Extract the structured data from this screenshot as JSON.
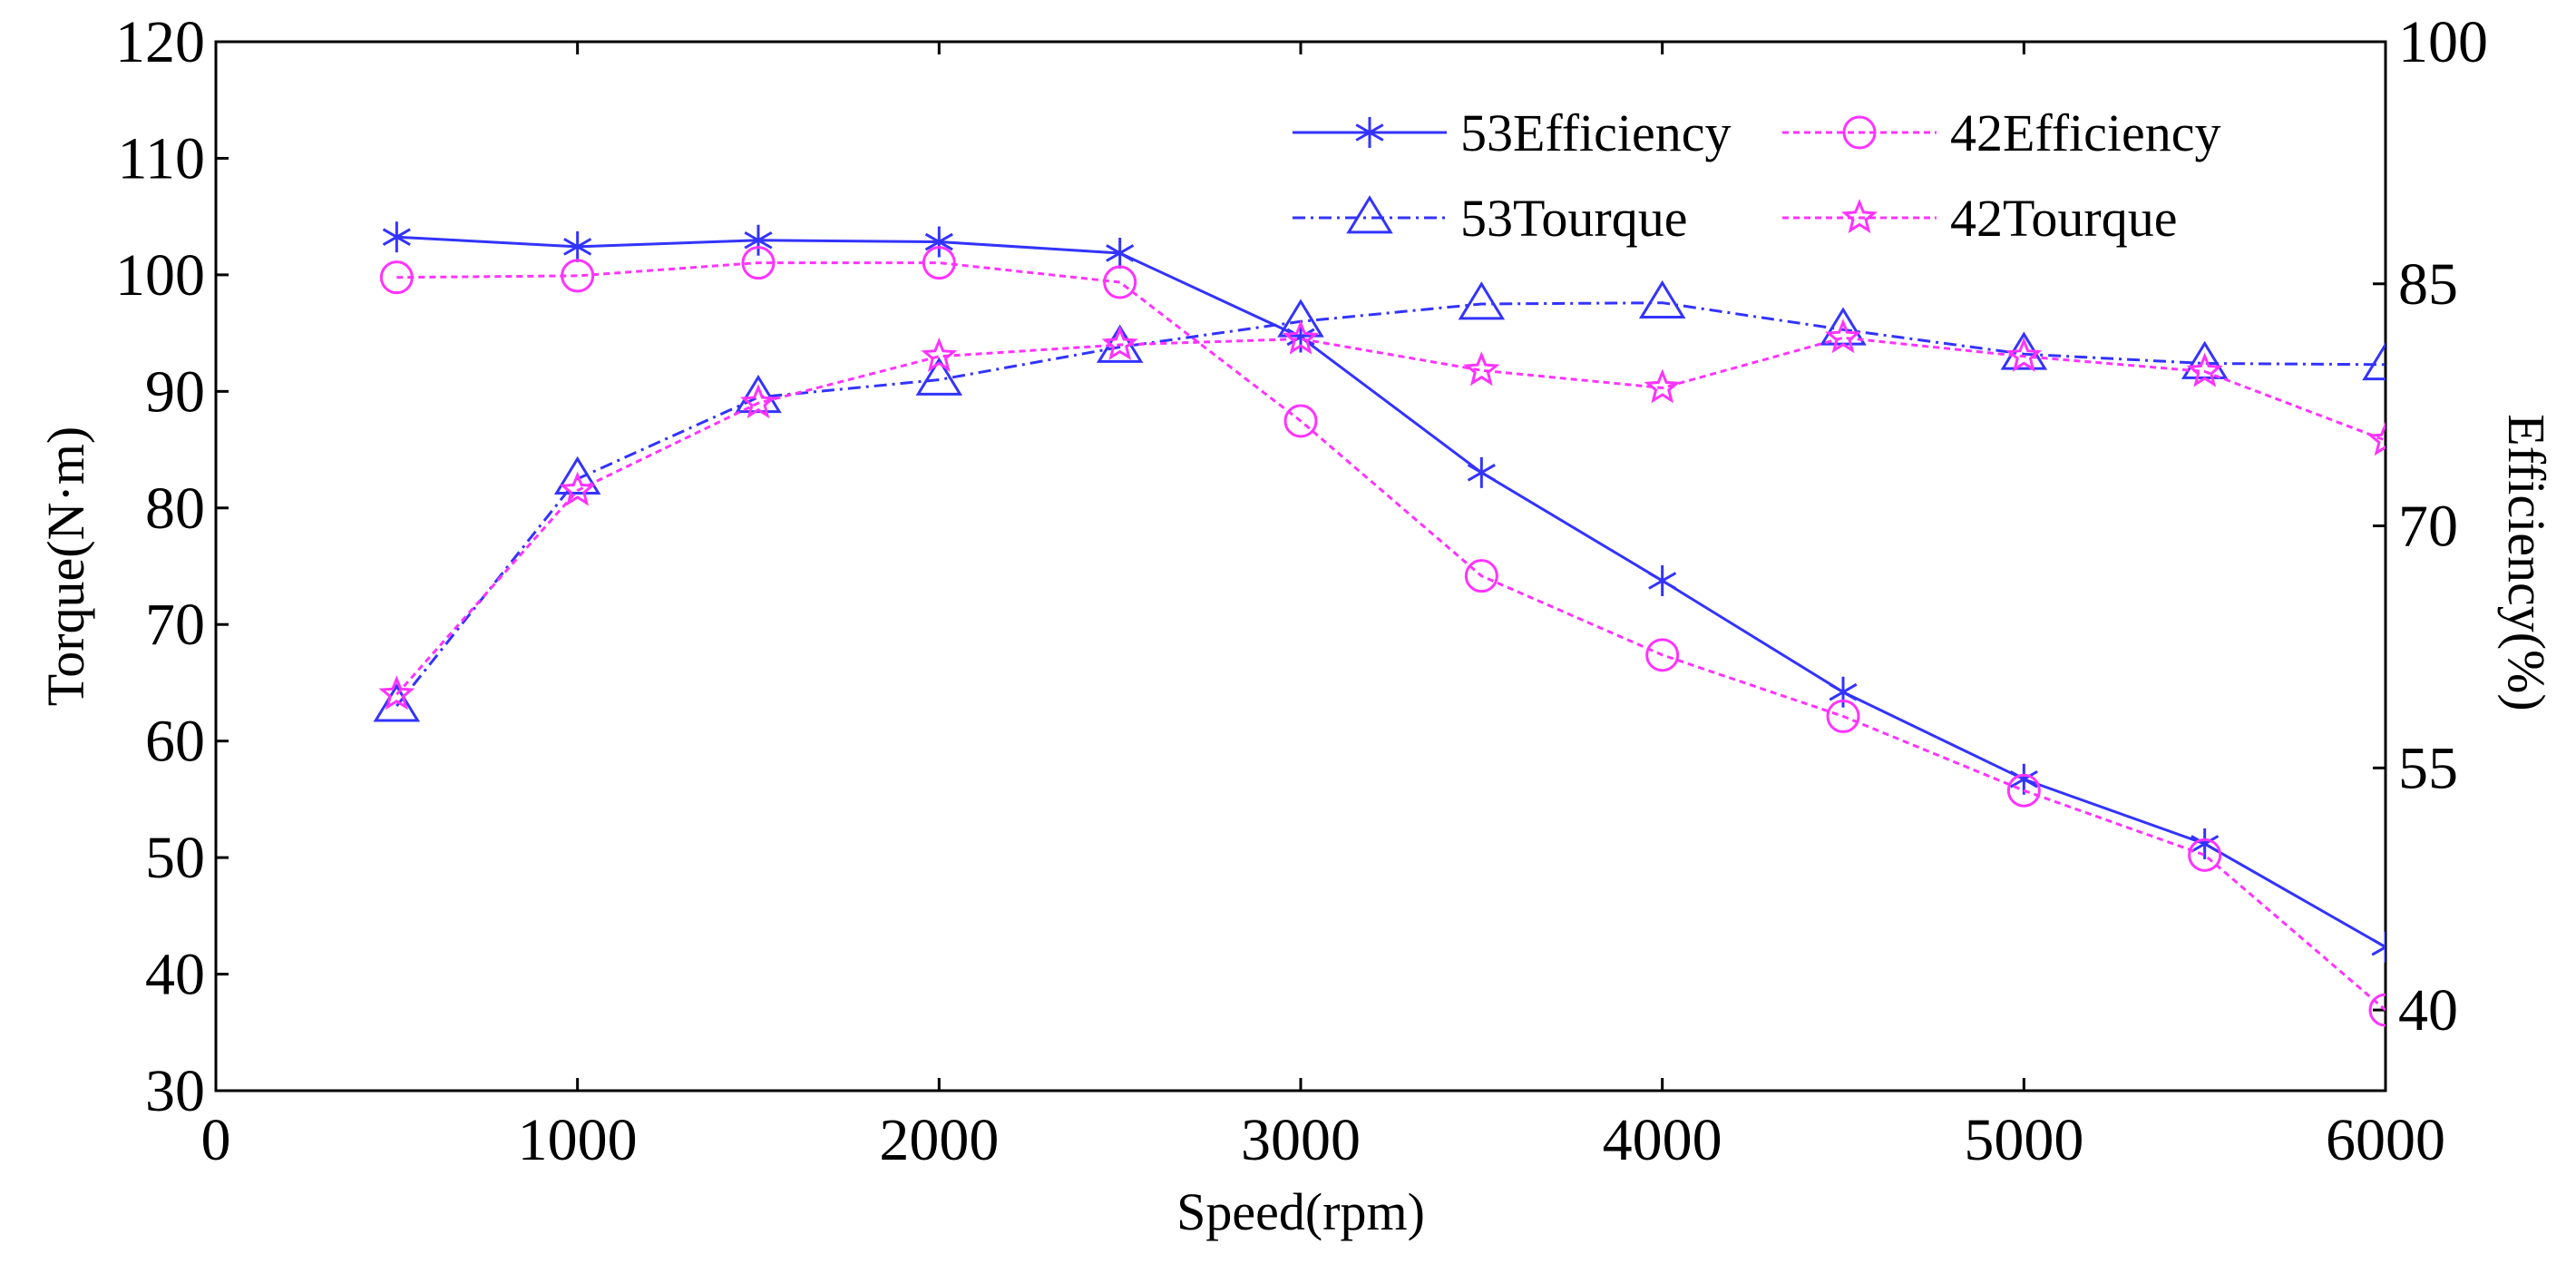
{
  "chart_data": {
    "type": "line",
    "title": "",
    "xlabel": "Speed(rpm)",
    "ylabel_left": "Torque(N·m)",
    "ylabel_right": "Efficiency(%)",
    "xlim": [
      0,
      6000
    ],
    "ylim_left": [
      30,
      120
    ],
    "ylim_right": [
      35,
      100
    ],
    "x_ticks": [
      0,
      1000,
      2000,
      3000,
      4000,
      5000,
      6000
    ],
    "y_ticks_left": [
      30,
      40,
      50,
      60,
      70,
      80,
      90,
      100,
      110,
      120
    ],
    "y_ticks_right": [
      40,
      55,
      70,
      85,
      100
    ],
    "grid": false,
    "legend_position": "top-right",
    "x": [
      500,
      1000,
      1500,
      2000,
      2500,
      3000,
      3500,
      4000,
      4500,
      5000,
      5500,
      6000
    ],
    "series": [
      {
        "name": "53Efficiency",
        "axis": "right",
        "color": "#3333ff",
        "line_style": "solid",
        "marker": "asterisk",
        "values": [
          87.9,
          87.3,
          87.7,
          87.6,
          86.9,
          81.7,
          73.3,
          66.6,
          59.7,
          54.3,
          50.3,
          43.9
        ]
      },
      {
        "name": "42Efficiency",
        "axis": "right",
        "color": "#ff33ff",
        "line_style": "dotted",
        "marker": "circle",
        "values": [
          85.4,
          85.5,
          86.3,
          86.3,
          85.1,
          76.5,
          66.9,
          62.0,
          58.2,
          53.6,
          49.6,
          40.0
        ]
      },
      {
        "name": "53Tourque",
        "axis": "left",
        "color": "#3333ff",
        "line_style": "dashdot",
        "marker": "triangle",
        "values": [
          63.0,
          82.5,
          89.5,
          91.0,
          93.8,
          96.0,
          97.5,
          97.6,
          95.3,
          93.2,
          92.4,
          92.3
        ]
      },
      {
        "name": "42Tourque",
        "axis": "left",
        "color": "#ff33ff",
        "line_style": "dotted",
        "marker": "star",
        "values": [
          64.0,
          81.5,
          89.0,
          93.0,
          94.0,
          94.5,
          91.8,
          90.3,
          94.6,
          93.0,
          91.7,
          85.8
        ]
      }
    ]
  }
}
